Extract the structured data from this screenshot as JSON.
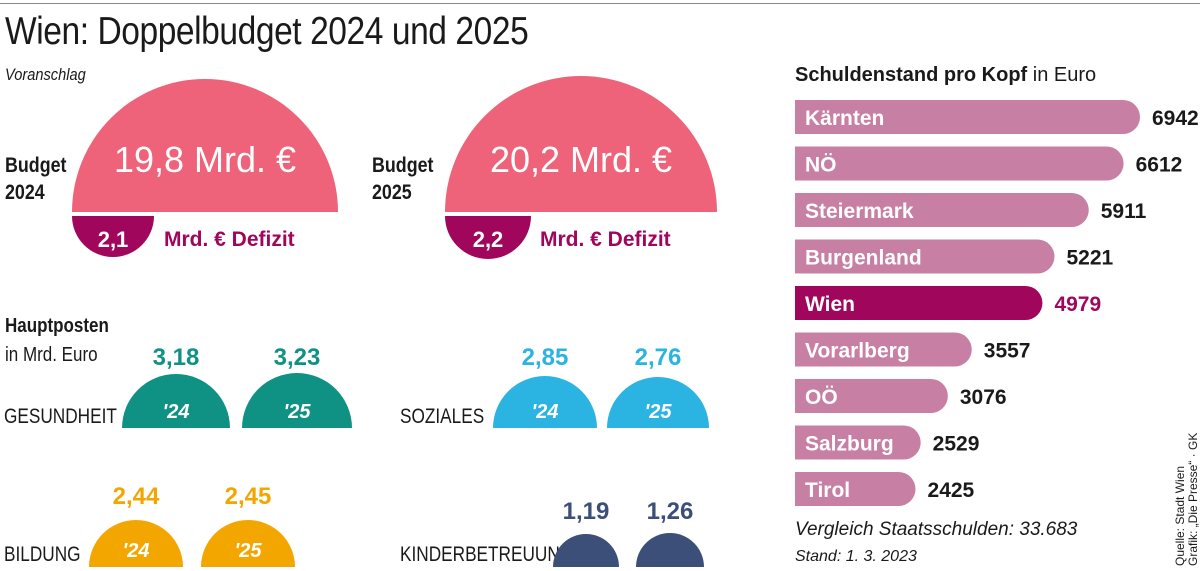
{
  "header": {
    "title": "Wien: Doppelbudget 2024 und 2025",
    "subtitle": "Voranschlag"
  },
  "budgets": [
    {
      "label_line1": "Budget",
      "label_line2": "2024",
      "amount": "19,8 Mrd. €",
      "deficit_value": "2,1",
      "deficit_label": "Mrd. € Defizit"
    },
    {
      "label_line1": "Budget",
      "label_line2": "2025",
      "amount": "20,2 Mrd. €",
      "deficit_value": "2,2",
      "deficit_label": "Mrd. € Defizit"
    }
  ],
  "hauptposten": {
    "heading": "Hauptposten",
    "unit": "in Mrd. Euro",
    "items": [
      {
        "category": "GESUNDHEIT",
        "color": "#0f9184",
        "values": [
          "3,18",
          "3,23"
        ],
        "years": [
          "'24",
          "'25"
        ]
      },
      {
        "category": "SOZIALES",
        "color": "#2bb3e2",
        "values": [
          "2,85",
          "2,76"
        ],
        "years": [
          "'24",
          "'25"
        ]
      },
      {
        "category": "BILDUNG",
        "color": "#f4a600",
        "values": [
          "2,44",
          "2,45"
        ],
        "years": [
          "'24",
          "'25"
        ]
      },
      {
        "category": "KINDERBETREUUNG",
        "color": "#3c4f78",
        "values": [
          "1,19",
          "1,26"
        ],
        "years": [
          "'24",
          "'25"
        ]
      }
    ]
  },
  "debt": {
    "title_bold": "Schuldenstand pro Kopf",
    "title_rest": " in Euro",
    "footnote": "Vergleich Staatsschulden: 33.683",
    "stand": "Stand: 1. 3. 2023"
  },
  "source": {
    "line1": "Quelle: Stadt Wien",
    "line2": "Grafik: „Die Presse“ · GK"
  },
  "colors": {
    "budget_red": "#ee6379",
    "deficit_purple": "#a1065d",
    "bar_pink": "#c77fa4",
    "bar_highlight": "#a1065d"
  },
  "chart_data": {
    "type": "bar",
    "orientation": "horizontal",
    "categories": [
      "Kärnten",
      "NÖ",
      "Steiermark",
      "Burgenland",
      "Wien",
      "Vorarlberg",
      "OÖ",
      "Salzburg",
      "Tirol"
    ],
    "values": [
      6942,
      6612,
      5911,
      5221,
      4979,
      3557,
      3076,
      2529,
      2425
    ],
    "value_labels": [
      "6942",
      "6612",
      "5911",
      "5221",
      "4979",
      "3557",
      "3076",
      "2529",
      "2425"
    ],
    "highlight": "Wien",
    "title": "Schuldenstand pro Kopf in Euro",
    "xlim": [
      0,
      7000
    ],
    "grid": false
  }
}
